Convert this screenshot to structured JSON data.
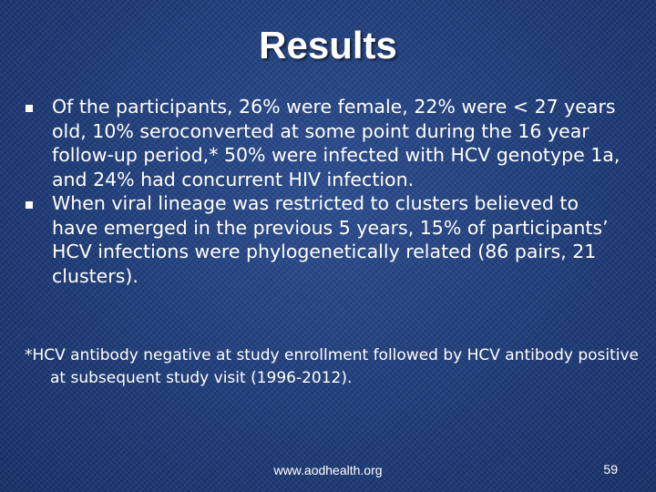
{
  "slide": {
    "title": "Results",
    "bullets": [
      "Of the participants, 26% were female, 22% were < 27 years old, 10% seroconverted at some point during the 16 year follow-up period,* 50% were infected with HCV genotype 1a, and 24% had concurrent HIV infection.",
      "When viral lineage was restricted to clusters believed to have emerged in the previous 5 years, 15% of participants’ HCV infections were phylogenetically related (86 pairs, 21 clusters)."
    ],
    "footnote": "*HCV antibody negative at study enrollment followed by HCV antibody positive at subsequent study visit (1996-2012).",
    "footer_url": "www.aodhealth.org",
    "page_number": "59"
  },
  "colors": {
    "background": "#1f3d7a",
    "text": "#ffffff"
  }
}
